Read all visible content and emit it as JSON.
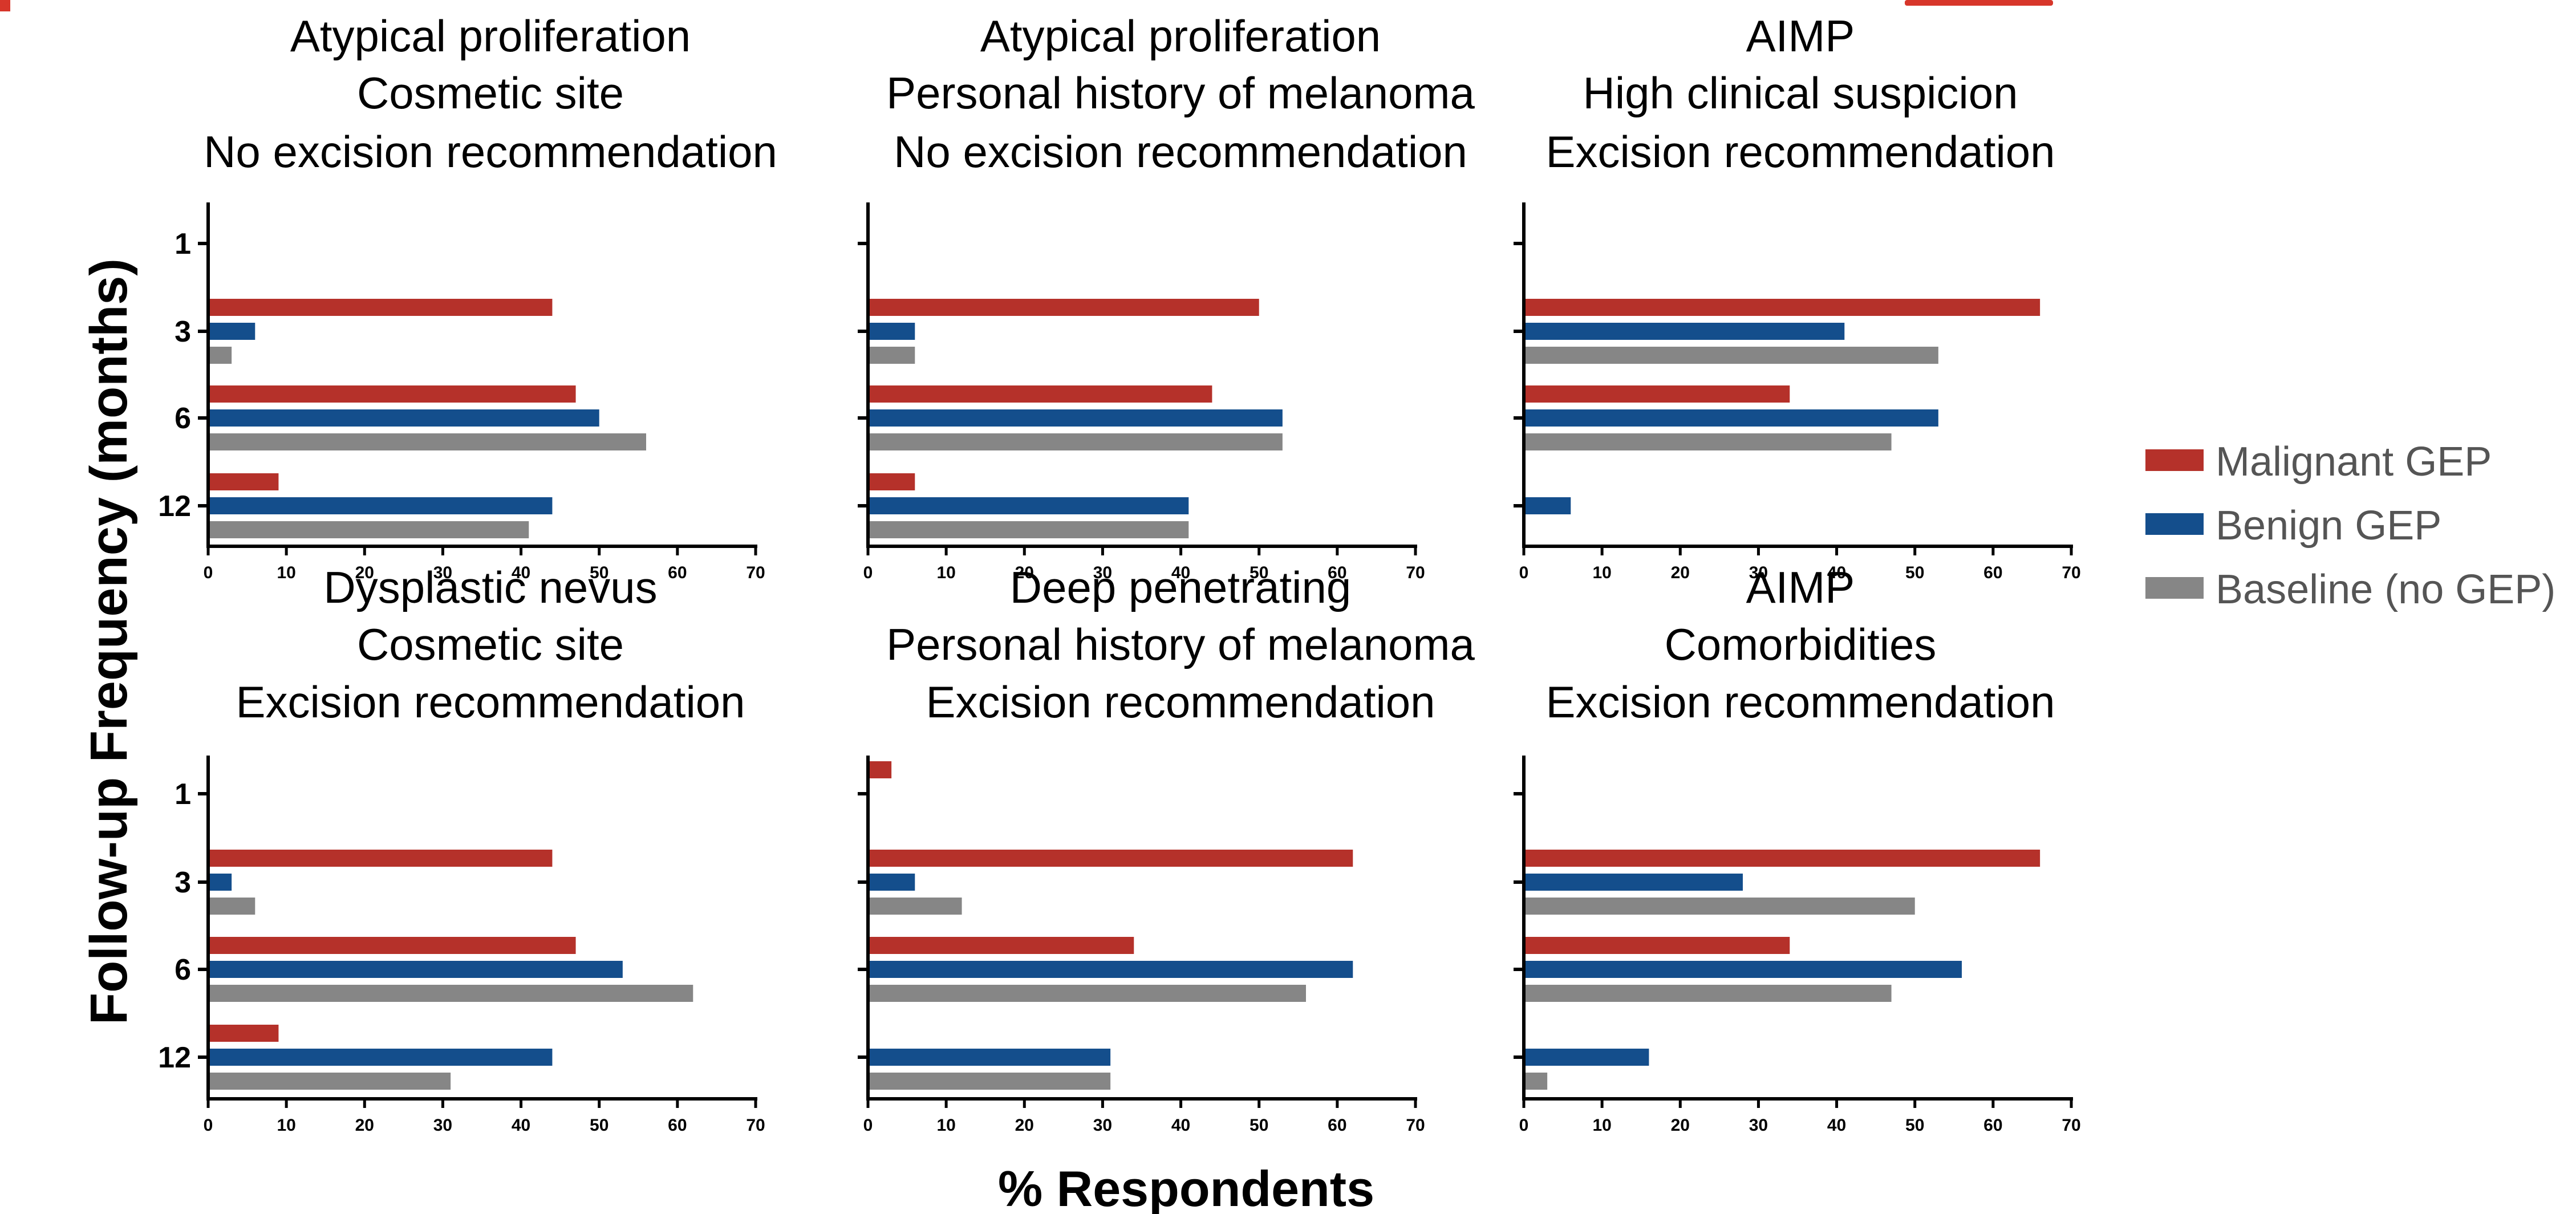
{
  "colors": {
    "malignant": "#B5312A",
    "benign": "#144E8C",
    "baseline": "#868686",
    "header_text": "#D7362A"
  },
  "header_fragment": "",
  "y_axis_title": "Follow-up Frequency (months)",
  "x_axis_title": "% Respondents",
  "legend": [
    {
      "label": "Malignant GEP",
      "color": "#B5312A"
    },
    {
      "label": "Benign GEP",
      "color": "#144E8C"
    },
    {
      "label": "Baseline (no GEP)",
      "color": "#868686"
    }
  ],
  "chart_data": [
    {
      "type": "bar",
      "title": [
        "Atypical proliferation",
        "Cosmetic site",
        "No excision recommendation"
      ],
      "categories": [
        "1",
        "3",
        "6",
        "12"
      ],
      "xlim": [
        0,
        70
      ],
      "xticks": [
        "0",
        "10",
        "20",
        "30",
        "40",
        "50",
        "60",
        "70"
      ],
      "show_category_labels": true,
      "series": [
        {
          "name": "Malignant GEP",
          "values": [
            0,
            44,
            47,
            9
          ]
        },
        {
          "name": "Benign GEP",
          "values": [
            0,
            6,
            50,
            44
          ]
        },
        {
          "name": "Baseline (no GEP)",
          "values": [
            0,
            3,
            56,
            41
          ]
        }
      ]
    },
    {
      "type": "bar",
      "title": [
        "Atypical proliferation",
        "Personal history of melanoma",
        "No excision recommendation"
      ],
      "categories": [
        "1",
        "3",
        "6",
        "12"
      ],
      "xlim": [
        0,
        70
      ],
      "xticks": [
        "0",
        "10",
        "20",
        "30",
        "40",
        "50",
        "60",
        "70"
      ],
      "show_category_labels": false,
      "series": [
        {
          "name": "Malignant GEP",
          "values": [
            0,
            50,
            44,
            6
          ]
        },
        {
          "name": "Benign GEP",
          "values": [
            0,
            6,
            53,
            41
          ]
        },
        {
          "name": "Baseline (no GEP)",
          "values": [
            0,
            6,
            53,
            41
          ]
        }
      ]
    },
    {
      "type": "bar",
      "title": [
        "AIMP",
        "High clinical suspicion",
        "Excision recommendation"
      ],
      "categories": [
        "1",
        "3",
        "6",
        "12"
      ],
      "xlim": [
        0,
        70
      ],
      "xticks": [
        "0",
        "10",
        "20",
        "30",
        "40",
        "50",
        "60",
        "70"
      ],
      "show_category_labels": false,
      "series": [
        {
          "name": "Malignant GEP",
          "values": [
            0,
            66,
            34,
            0
          ]
        },
        {
          "name": "Benign GEP",
          "values": [
            0,
            41,
            53,
            6
          ]
        },
        {
          "name": "Baseline (no GEP)",
          "values": [
            0,
            53,
            47,
            0
          ]
        }
      ]
    },
    {
      "type": "bar",
      "title": [
        "Dysplastic nevus",
        "Cosmetic site",
        "Excision recommendation"
      ],
      "categories": [
        "1",
        "3",
        "6",
        "12"
      ],
      "xlim": [
        0,
        70
      ],
      "xticks": [
        "0",
        "10",
        "20",
        "30",
        "40",
        "50",
        "60",
        "70"
      ],
      "show_category_labels": true,
      "series": [
        {
          "name": "Malignant GEP",
          "values": [
            0,
            44,
            47,
            9
          ]
        },
        {
          "name": "Benign GEP",
          "values": [
            0,
            3,
            53,
            44
          ]
        },
        {
          "name": "Baseline (no GEP)",
          "values": [
            0,
            6,
            62,
            31
          ]
        }
      ]
    },
    {
      "type": "bar",
      "title": [
        "Deep penetrating",
        "Personal history of melanoma",
        "Excision recommendation"
      ],
      "categories": [
        "1",
        "3",
        "6",
        "12"
      ],
      "xlim": [
        0,
        70
      ],
      "xticks": [
        "0",
        "10",
        "20",
        "30",
        "40",
        "50",
        "60",
        "70"
      ],
      "show_category_labels": false,
      "series": [
        {
          "name": "Malignant GEP",
          "values": [
            3,
            62,
            34,
            0
          ]
        },
        {
          "name": "Benign GEP",
          "values": [
            0,
            6,
            62,
            31
          ]
        },
        {
          "name": "Baseline (no GEP)",
          "values": [
            0,
            12,
            56,
            31
          ]
        }
      ]
    },
    {
      "type": "bar",
      "title": [
        "AIMP",
        "Comorbidities",
        "Excision recommendation"
      ],
      "categories": [
        "1",
        "3",
        "6",
        "12"
      ],
      "xlim": [
        0,
        70
      ],
      "xticks": [
        "0",
        "10",
        "20",
        "30",
        "40",
        "50",
        "60",
        "70"
      ],
      "show_category_labels": false,
      "series": [
        {
          "name": "Malignant GEP",
          "values": [
            0,
            66,
            34,
            0
          ]
        },
        {
          "name": "Benign GEP",
          "values": [
            0,
            28,
            56,
            16
          ]
        },
        {
          "name": "Baseline (no GEP)",
          "values": [
            0,
            50,
            47,
            3
          ]
        }
      ]
    }
  ]
}
